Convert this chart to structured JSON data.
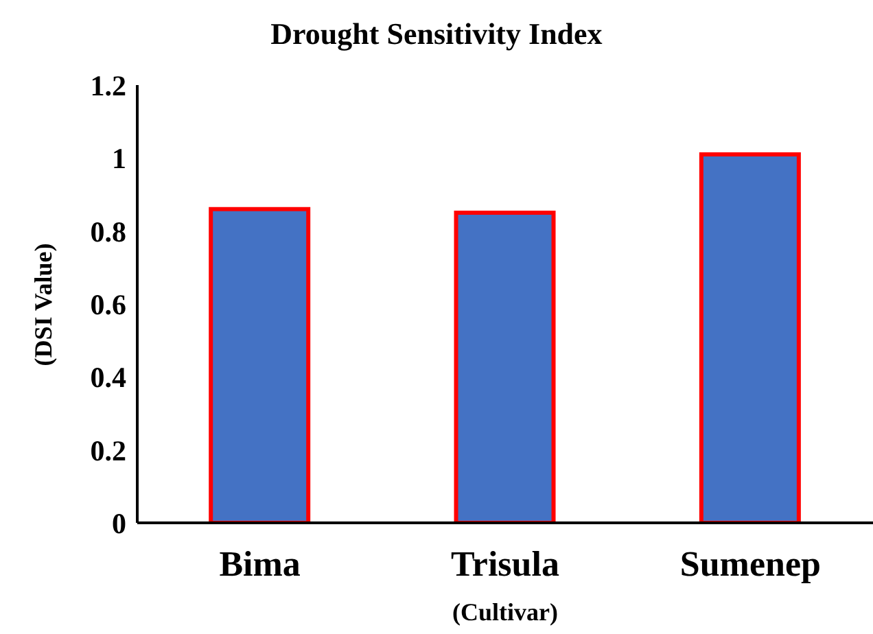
{
  "chart_data": {
    "type": "bar",
    "title": "Drought Sensitivity Index",
    "xlabel": "(Cultivar)",
    "ylabel": "(DSI Value)",
    "categories": [
      "Bima",
      "Trisula",
      "Sumenep"
    ],
    "values": [
      0.86,
      0.85,
      1.01
    ],
    "color": "#4472c4",
    "ylim": [
      0,
      1.2
    ],
    "yticks": [
      0,
      0.2,
      0.4,
      0.6,
      0.8,
      1,
      1.2
    ],
    "grid": false,
    "legend": false
  }
}
